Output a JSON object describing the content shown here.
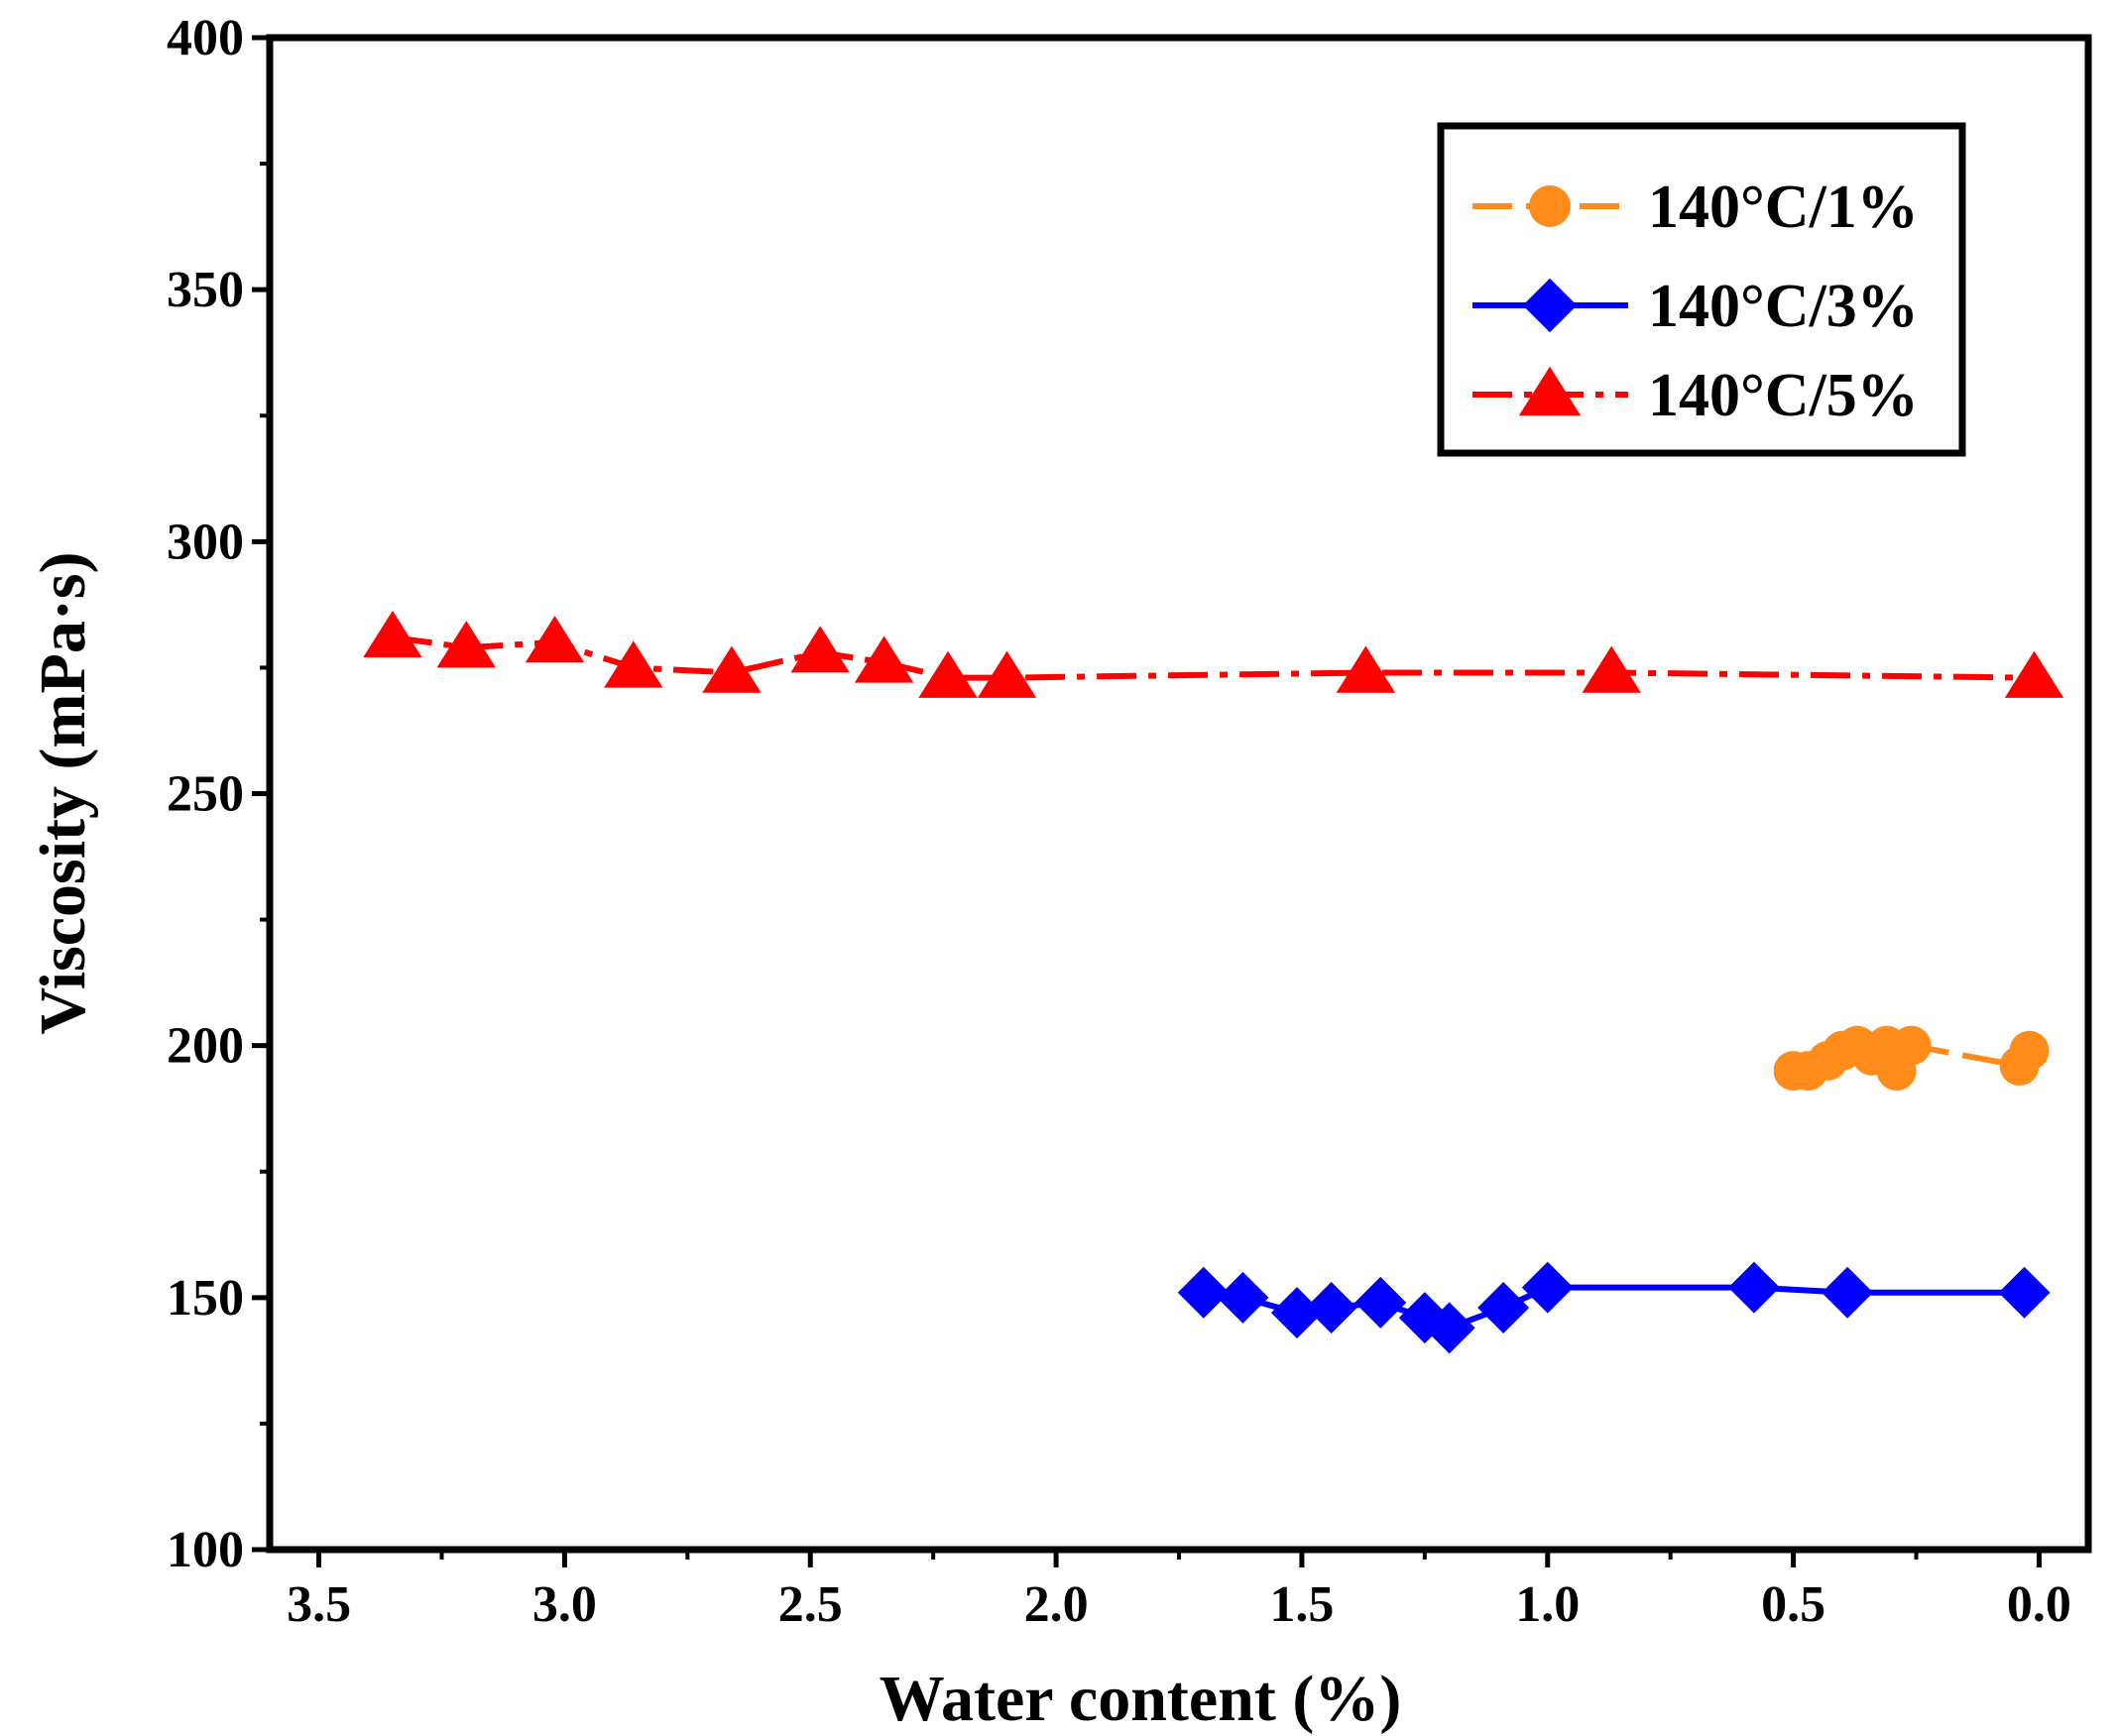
{
  "chart_data": {
    "type": "line",
    "title": "",
    "xlabel": "Water content (%)",
    "ylabel": "Viscosity (mPa·s)",
    "xlim": [
      3.6,
      -0.1
    ],
    "ylim": [
      100,
      400
    ],
    "x_reversed": true,
    "xticks": [
      "3.5",
      "3.0",
      "2.5",
      "2.0",
      "1.5",
      "1.0",
      "0.5",
      "0.0"
    ],
    "yticks": [
      "100",
      "150",
      "200",
      "250",
      "300",
      "350",
      "400"
    ],
    "legend_position": "top-right",
    "series": [
      {
        "name": "140°C/1%",
        "color": "#ff8c1a",
        "marker": "circle",
        "line_style": "dashed",
        "x": [
          0.5,
          0.47,
          0.43,
          0.4,
          0.37,
          0.34,
          0.31,
          0.29,
          0.26,
          0.04,
          0.02
        ],
        "y": [
          195,
          195,
          197,
          199,
          200,
          198,
          200,
          195,
          200,
          196,
          199
        ]
      },
      {
        "name": "140°C/3%",
        "color": "#0000ff",
        "marker": "diamond",
        "line_style": "solid",
        "x": [
          1.7,
          1.62,
          1.51,
          1.44,
          1.34,
          1.25,
          1.2,
          1.09,
          1.0,
          0.58,
          0.39,
          0.03
        ],
        "y": [
          151,
          150,
          147,
          148,
          149,
          146,
          144,
          148,
          152,
          152,
          151,
          151
        ]
      },
      {
        "name": "140°C/5%",
        "color": "#ff0000",
        "marker": "triangle",
        "line_style": "dash-dot",
        "x": [
          3.35,
          3.2,
          3.02,
          2.86,
          2.66,
          2.48,
          2.35,
          2.22,
          2.1,
          1.37,
          0.87,
          0.01
        ],
        "y": [
          281,
          279,
          280,
          275,
          274,
          278,
          276,
          273,
          273,
          274,
          274,
          273
        ]
      }
    ]
  }
}
